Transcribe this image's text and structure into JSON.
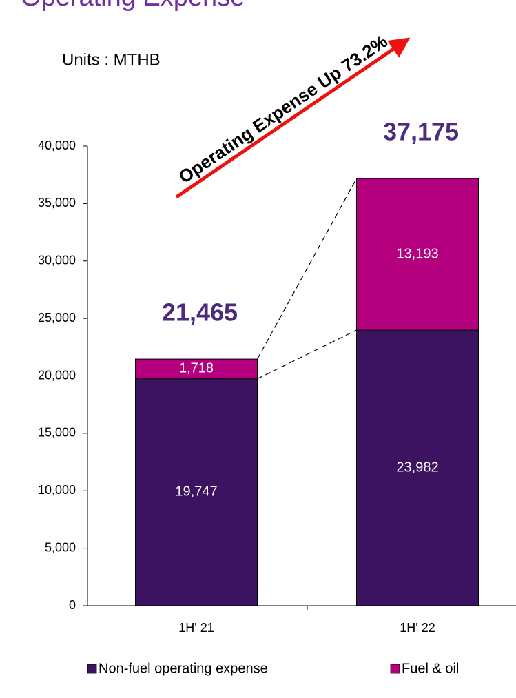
{
  "chart_data": {
    "type": "stacked-bar",
    "title": "Operating Expense",
    "subtitle": "Units : MTHB",
    "annotation": "Operating Expense  Up 73.2%",
    "categories": [
      "1H' 21",
      "1H' 22"
    ],
    "series": [
      {
        "name": "Non-fuel operating expense",
        "color": "#3c1361",
        "values": [
          19747,
          23982
        ],
        "value_labels": [
          "19,747",
          "23,982"
        ]
      },
      {
        "name": "Fuel & oil",
        "color": "#b4007e",
        "values": [
          1718,
          13193
        ],
        "value_labels": [
          "1,718",
          "13,193"
        ]
      }
    ],
    "totals": {
      "values": [
        21465,
        37175
      ],
      "value_labels": [
        "21,465",
        "37,175"
      ]
    },
    "ylim": [
      0,
      40000
    ],
    "yticks": [
      0,
      {
        "value": 5000,
        "label": "5,000"
      },
      {
        "value": 10000,
        "label": "10,000"
      },
      {
        "value": 15000,
        "label": "15,000"
      },
      {
        "value": 20000,
        "label": "20,000"
      },
      {
        "value": 25000,
        "label": "25,000"
      },
      {
        "value": 30000,
        "label": "30,000"
      },
      {
        "value": 35000,
        "label": "35,000"
      },
      {
        "value": 40000,
        "label": "40,000"
      }
    ],
    "grid": false,
    "legend": "bottom"
  }
}
